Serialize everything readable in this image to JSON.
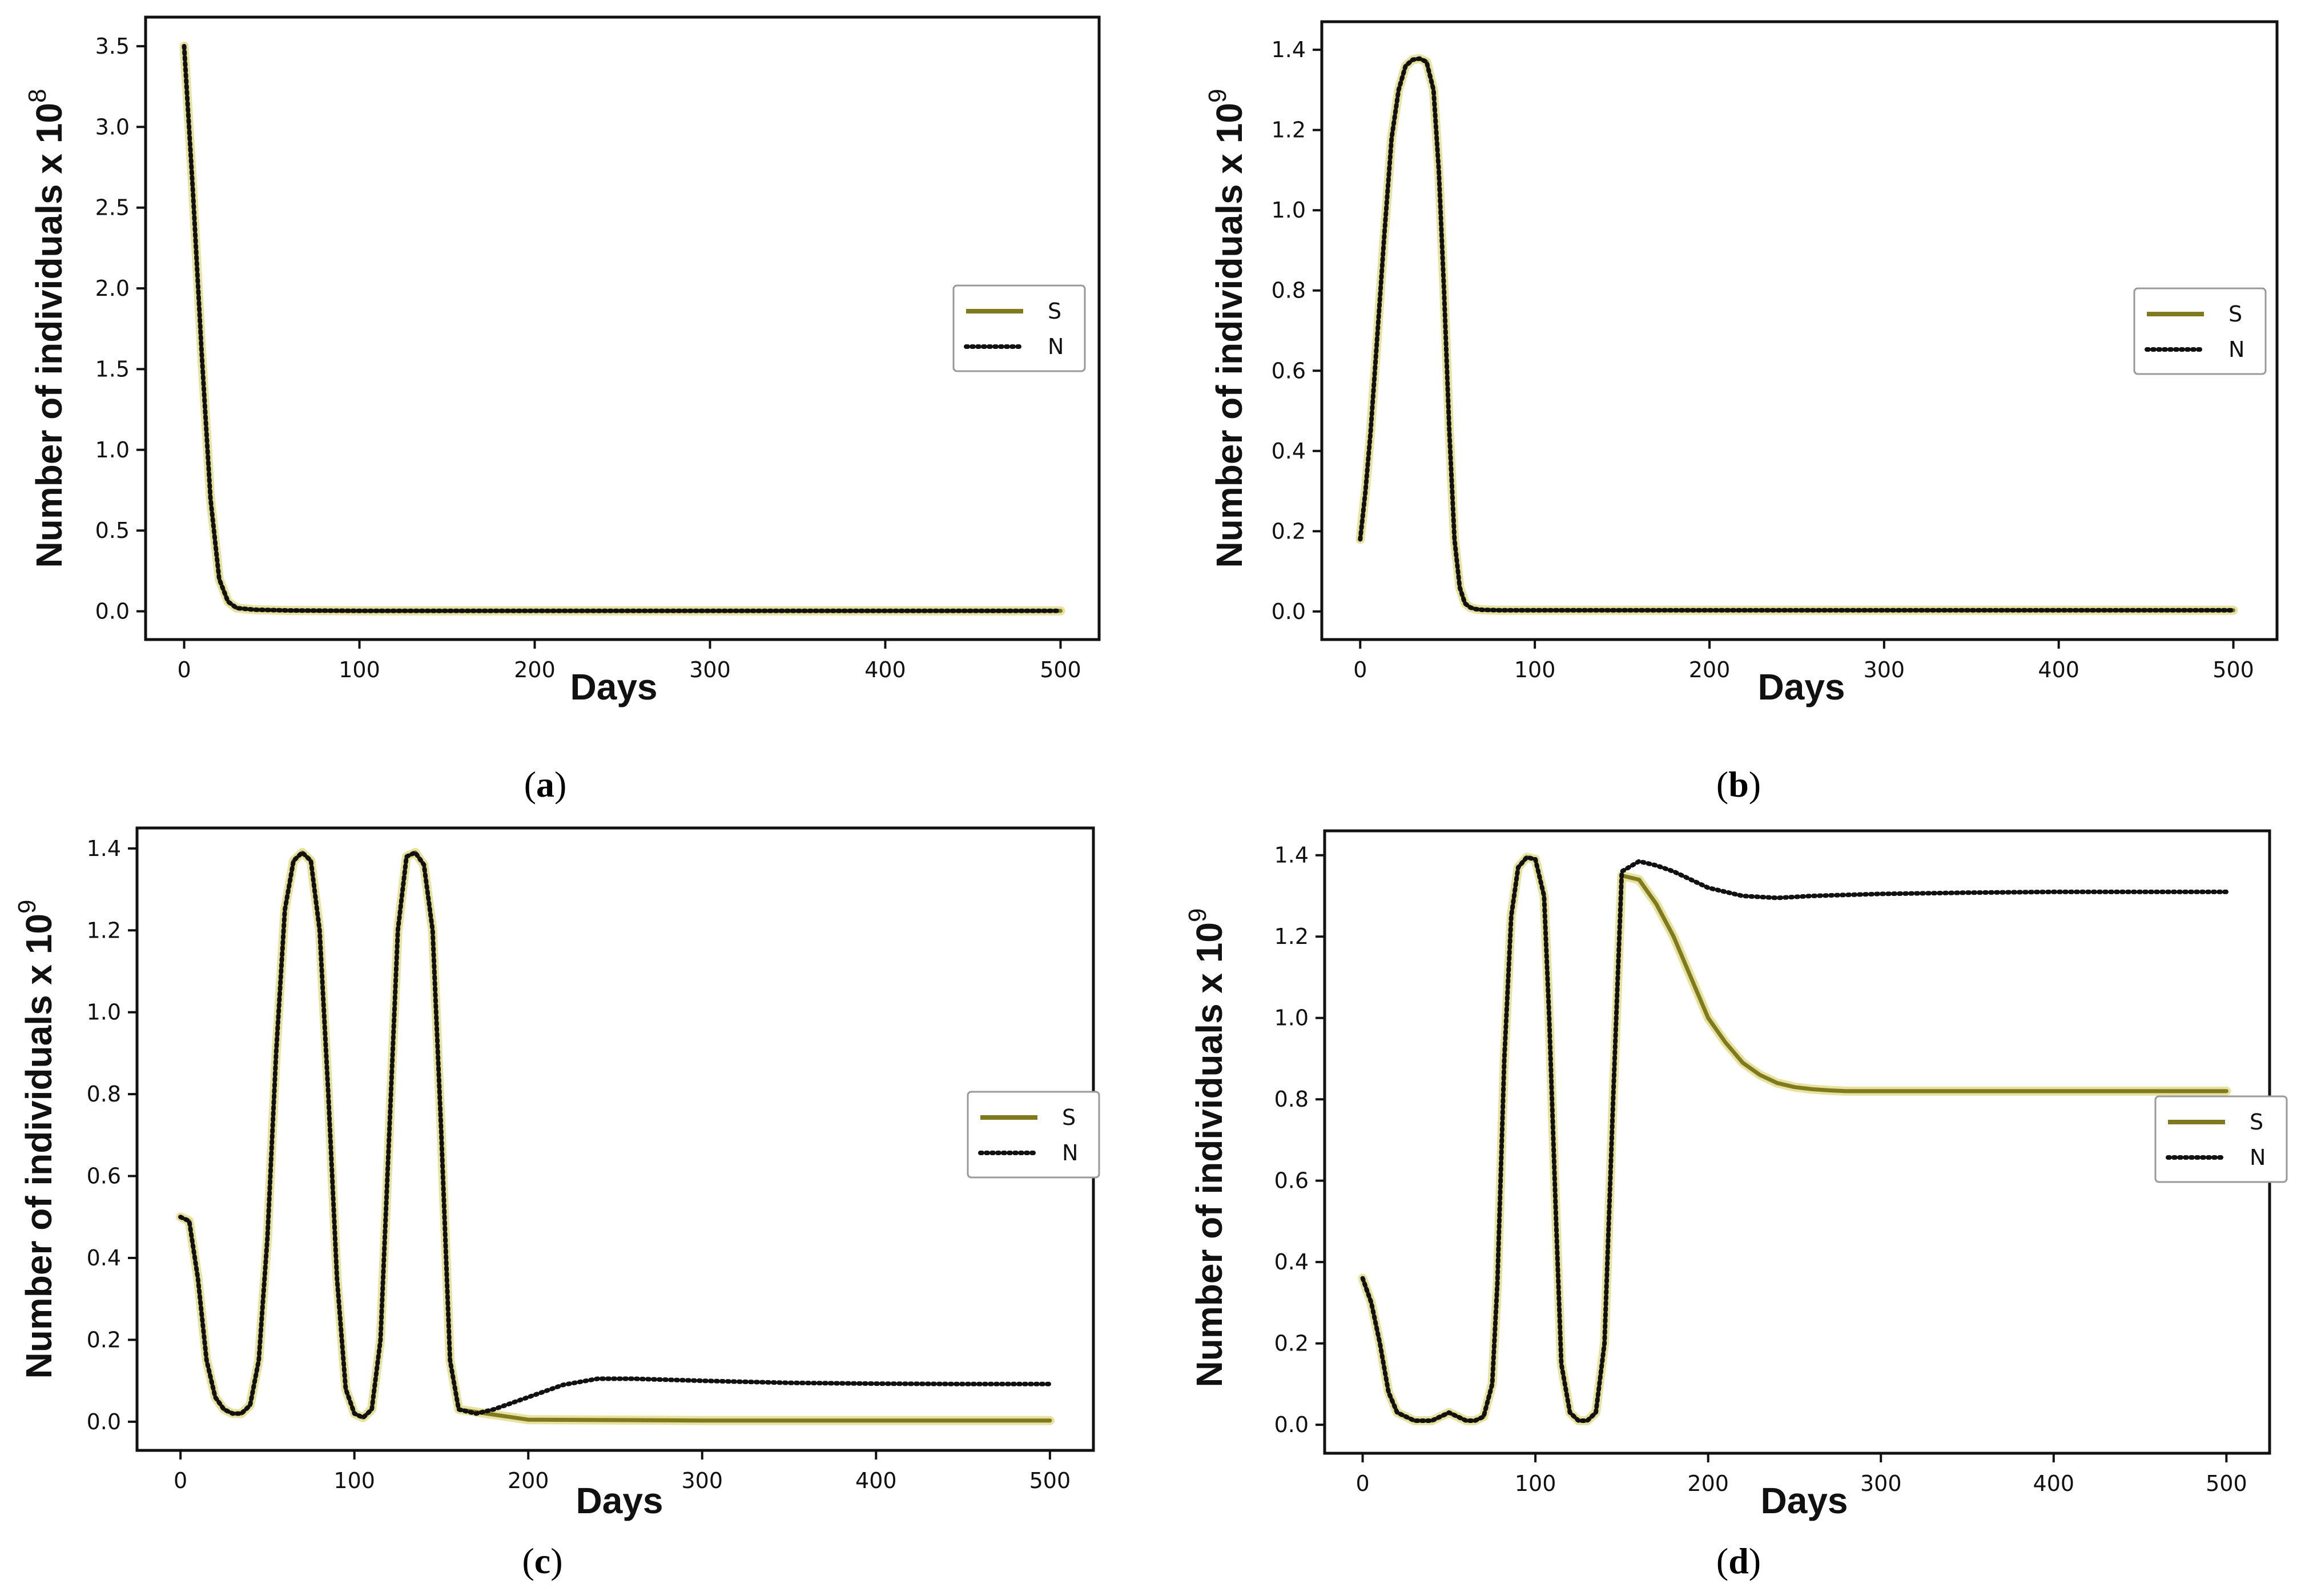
{
  "figure": {
    "colors": {
      "S": "#807a1e",
      "S_glow": "#e8e2a0",
      "N": "#111111",
      "frame": "#111111"
    }
  },
  "chart_data": [
    {
      "id": "a",
      "caption_open": "(",
      "caption_letter": "a",
      "caption_close": ")",
      "type": "line",
      "xlabel": "Days",
      "ylabel": "Number of individuals",
      "ylabel_multiplier": "x 10",
      "ylabel_exponent": "8",
      "xlim": [
        -22,
        522
      ],
      "ylim": [
        -0.175,
        3.68
      ],
      "xticks": [
        0,
        100,
        200,
        300,
        400,
        500
      ],
      "xtick_labels": [
        "0",
        "100",
        "200",
        "300",
        "400",
        "500"
      ],
      "yticks": [
        0.0,
        0.5,
        1.0,
        1.5,
        2.0,
        2.5,
        3.0,
        3.5
      ],
      "ytick_labels": [
        "0.0",
        "0.5",
        "1.0",
        "1.5",
        "2.0",
        "2.5",
        "3.0",
        "3.5"
      ],
      "legend": {
        "position": "center-right",
        "entries": [
          "S",
          "N"
        ]
      },
      "series": [
        {
          "name": "S",
          "style": "solid",
          "x": [
            0,
            5,
            10,
            15,
            20,
            25,
            30,
            40,
            60,
            100,
            200,
            300,
            400,
            500
          ],
          "y": [
            3.5,
            2.6,
            1.6,
            0.7,
            0.2,
            0.06,
            0.02,
            0.01,
            0.005,
            0.003,
            0.003,
            0.003,
            0.003,
            0.003
          ]
        },
        {
          "name": "N",
          "style": "dotted",
          "x": [
            0,
            5,
            10,
            15,
            20,
            25,
            30,
            40,
            60,
            100,
            200,
            300,
            400,
            500
          ],
          "y": [
            3.5,
            2.6,
            1.6,
            0.7,
            0.2,
            0.06,
            0.02,
            0.01,
            0.005,
            0.003,
            0.003,
            0.003,
            0.003,
            0.003
          ]
        }
      ]
    },
    {
      "id": "b",
      "caption_open": "(",
      "caption_letter": "b",
      "caption_close": ")",
      "type": "line",
      "xlabel": "Days",
      "ylabel": "Number of individuals",
      "ylabel_multiplier": "x 10",
      "ylabel_exponent": "9",
      "xlim": [
        -22,
        525
      ],
      "ylim": [
        -0.07,
        1.47
      ],
      "xticks": [
        0,
        100,
        200,
        300,
        400,
        500
      ],
      "xtick_labels": [
        "0",
        "100",
        "200",
        "300",
        "400",
        "500"
      ],
      "yticks": [
        0.0,
        0.2,
        0.4,
        0.6,
        0.8,
        1.0,
        1.2,
        1.4
      ],
      "ytick_labels": [
        "0.0",
        "0.2",
        "0.4",
        "0.6",
        "0.8",
        "1.0",
        "1.2",
        "1.4"
      ],
      "legend": {
        "position": "center-right",
        "entries": [
          "S",
          "N"
        ]
      },
      "series": [
        {
          "name": "S",
          "style": "solid",
          "x": [
            0,
            3,
            6,
            10,
            14,
            18,
            22,
            26,
            30,
            34,
            38,
            42,
            45,
            48,
            51,
            54,
            57,
            60,
            63,
            66,
            70,
            80,
            100,
            200,
            300,
            400,
            500
          ],
          "y": [
            0.18,
            0.3,
            0.45,
            0.7,
            0.95,
            1.18,
            1.3,
            1.36,
            1.375,
            1.378,
            1.37,
            1.3,
            1.1,
            0.8,
            0.45,
            0.18,
            0.06,
            0.02,
            0.01,
            0.006,
            0.004,
            0.003,
            0.003,
            0.003,
            0.003,
            0.003,
            0.003
          ]
        },
        {
          "name": "N",
          "style": "dotted",
          "x": [
            0,
            3,
            6,
            10,
            14,
            18,
            22,
            26,
            30,
            34,
            38,
            42,
            45,
            48,
            51,
            54,
            57,
            60,
            63,
            66,
            70,
            80,
            100,
            200,
            300,
            400,
            500
          ],
          "y": [
            0.18,
            0.3,
            0.45,
            0.7,
            0.95,
            1.18,
            1.3,
            1.36,
            1.375,
            1.378,
            1.37,
            1.3,
            1.1,
            0.8,
            0.45,
            0.18,
            0.06,
            0.02,
            0.01,
            0.006,
            0.004,
            0.003,
            0.003,
            0.003,
            0.003,
            0.003,
            0.003
          ]
        }
      ]
    },
    {
      "id": "c",
      "caption_open": "(",
      "caption_letter": "c",
      "caption_close": ")",
      "type": "line",
      "xlabel": "Days",
      "ylabel": "Number of individuals",
      "ylabel_multiplier": "x 10",
      "ylabel_exponent": "9",
      "xlim": [
        -25,
        525
      ],
      "ylim": [
        -0.07,
        1.45
      ],
      "xticks": [
        0,
        100,
        200,
        300,
        400,
        500
      ],
      "xtick_labels": [
        "0",
        "100",
        "200",
        "300",
        "400",
        "500"
      ],
      "yticks": [
        0.0,
        0.2,
        0.4,
        0.6,
        0.8,
        1.0,
        1.2,
        1.4
      ],
      "ytick_labels": [
        "0.0",
        "0.2",
        "0.4",
        "0.6",
        "0.8",
        "1.0",
        "1.2",
        "1.4"
      ],
      "legend": {
        "position": "center-right",
        "entries": [
          "S",
          "N"
        ]
      },
      "series": [
        {
          "name": "S",
          "style": "solid",
          "x": [
            0,
            5,
            10,
            15,
            20,
            25,
            30,
            35,
            40,
            45,
            50,
            55,
            60,
            65,
            70,
            75,
            80,
            85,
            90,
            95,
            100,
            105,
            110,
            115,
            120,
            125,
            130,
            135,
            140,
            145,
            150,
            155,
            160,
            200,
            300,
            400,
            500
          ],
          "y": [
            0.5,
            0.49,
            0.35,
            0.15,
            0.06,
            0.03,
            0.02,
            0.02,
            0.04,
            0.15,
            0.45,
            0.9,
            1.25,
            1.37,
            1.39,
            1.37,
            1.2,
            0.8,
            0.35,
            0.08,
            0.02,
            0.01,
            0.03,
            0.2,
            0.7,
            1.2,
            1.38,
            1.39,
            1.36,
            1.2,
            0.7,
            0.15,
            0.03,
            0.005,
            0.003,
            0.003,
            0.003
          ]
        },
        {
          "name": "N",
          "style": "dotted",
          "x": [
            0,
            5,
            10,
            15,
            20,
            25,
            30,
            35,
            40,
            45,
            50,
            55,
            60,
            65,
            70,
            75,
            80,
            85,
            90,
            95,
            100,
            105,
            110,
            115,
            120,
            125,
            130,
            135,
            140,
            145,
            150,
            155,
            160,
            170,
            180,
            200,
            220,
            240,
            260,
            300,
            350,
            400,
            450,
            500
          ],
          "y": [
            0.5,
            0.49,
            0.35,
            0.15,
            0.06,
            0.03,
            0.02,
            0.02,
            0.04,
            0.15,
            0.45,
            0.9,
            1.25,
            1.37,
            1.39,
            1.37,
            1.2,
            0.8,
            0.35,
            0.08,
            0.02,
            0.01,
            0.03,
            0.2,
            0.7,
            1.2,
            1.38,
            1.39,
            1.36,
            1.2,
            0.7,
            0.15,
            0.03,
            0.02,
            0.03,
            0.06,
            0.09,
            0.105,
            0.105,
            0.1,
            0.095,
            0.093,
            0.092,
            0.092
          ]
        }
      ]
    },
    {
      "id": "d",
      "caption_open": "(",
      "caption_letter": "d",
      "caption_close": ")",
      "type": "line",
      "xlabel": "Days",
      "ylabel": "Number of individuals",
      "ylabel_multiplier": "x 10",
      "ylabel_exponent": "9",
      "xlim": [
        -22,
        525
      ],
      "ylim": [
        -0.07,
        1.46
      ],
      "xticks": [
        0,
        100,
        200,
        300,
        400,
        500
      ],
      "xtick_labels": [
        "0",
        "100",
        "200",
        "300",
        "400",
        "500"
      ],
      "yticks": [
        0.0,
        0.2,
        0.4,
        0.6,
        0.8,
        1.0,
        1.2,
        1.4
      ],
      "ytick_labels": [
        "0.0",
        "0.2",
        "0.4",
        "0.6",
        "0.8",
        "1.0",
        "1.2",
        "1.4"
      ],
      "legend": {
        "position": "center-right",
        "entries": [
          "S",
          "N"
        ]
      },
      "series": [
        {
          "name": "S",
          "style": "solid",
          "x": [
            0,
            5,
            10,
            15,
            20,
            30,
            40,
            45,
            50,
            55,
            60,
            65,
            70,
            75,
            78,
            82,
            86,
            90,
            95,
            100,
            105,
            108,
            112,
            115,
            120,
            125,
            130,
            135,
            140,
            145,
            150,
            160,
            170,
            180,
            190,
            200,
            210,
            220,
            230,
            240,
            250,
            260,
            270,
            280,
            300,
            350,
            400,
            450,
            500
          ],
          "y": [
            0.36,
            0.3,
            0.2,
            0.08,
            0.03,
            0.01,
            0.01,
            0.02,
            0.03,
            0.02,
            0.01,
            0.01,
            0.02,
            0.1,
            0.35,
            0.9,
            1.25,
            1.37,
            1.395,
            1.39,
            1.3,
            1.0,
            0.5,
            0.15,
            0.03,
            0.01,
            0.01,
            0.03,
            0.2,
            0.8,
            1.35,
            1.34,
            1.28,
            1.2,
            1.1,
            1.0,
            0.94,
            0.89,
            0.86,
            0.84,
            0.83,
            0.825,
            0.822,
            0.82,
            0.82,
            0.82,
            0.82,
            0.82,
            0.82
          ]
        },
        {
          "name": "N",
          "style": "dotted",
          "x": [
            0,
            5,
            10,
            15,
            20,
            30,
            40,
            45,
            50,
            55,
            60,
            65,
            70,
            75,
            78,
            82,
            86,
            90,
            95,
            100,
            105,
            108,
            112,
            115,
            120,
            125,
            130,
            135,
            140,
            145,
            150,
            160,
            170,
            180,
            200,
            220,
            240,
            260,
            300,
            350,
            400,
            450,
            500
          ],
          "y": [
            0.36,
            0.3,
            0.2,
            0.08,
            0.03,
            0.01,
            0.01,
            0.02,
            0.03,
            0.02,
            0.01,
            0.01,
            0.02,
            0.1,
            0.35,
            0.9,
            1.25,
            1.37,
            1.395,
            1.39,
            1.3,
            1.0,
            0.5,
            0.15,
            0.03,
            0.01,
            0.01,
            0.03,
            0.2,
            0.8,
            1.36,
            1.385,
            1.375,
            1.36,
            1.32,
            1.3,
            1.295,
            1.3,
            1.305,
            1.308,
            1.31,
            1.31,
            1.31
          ]
        }
      ]
    }
  ]
}
